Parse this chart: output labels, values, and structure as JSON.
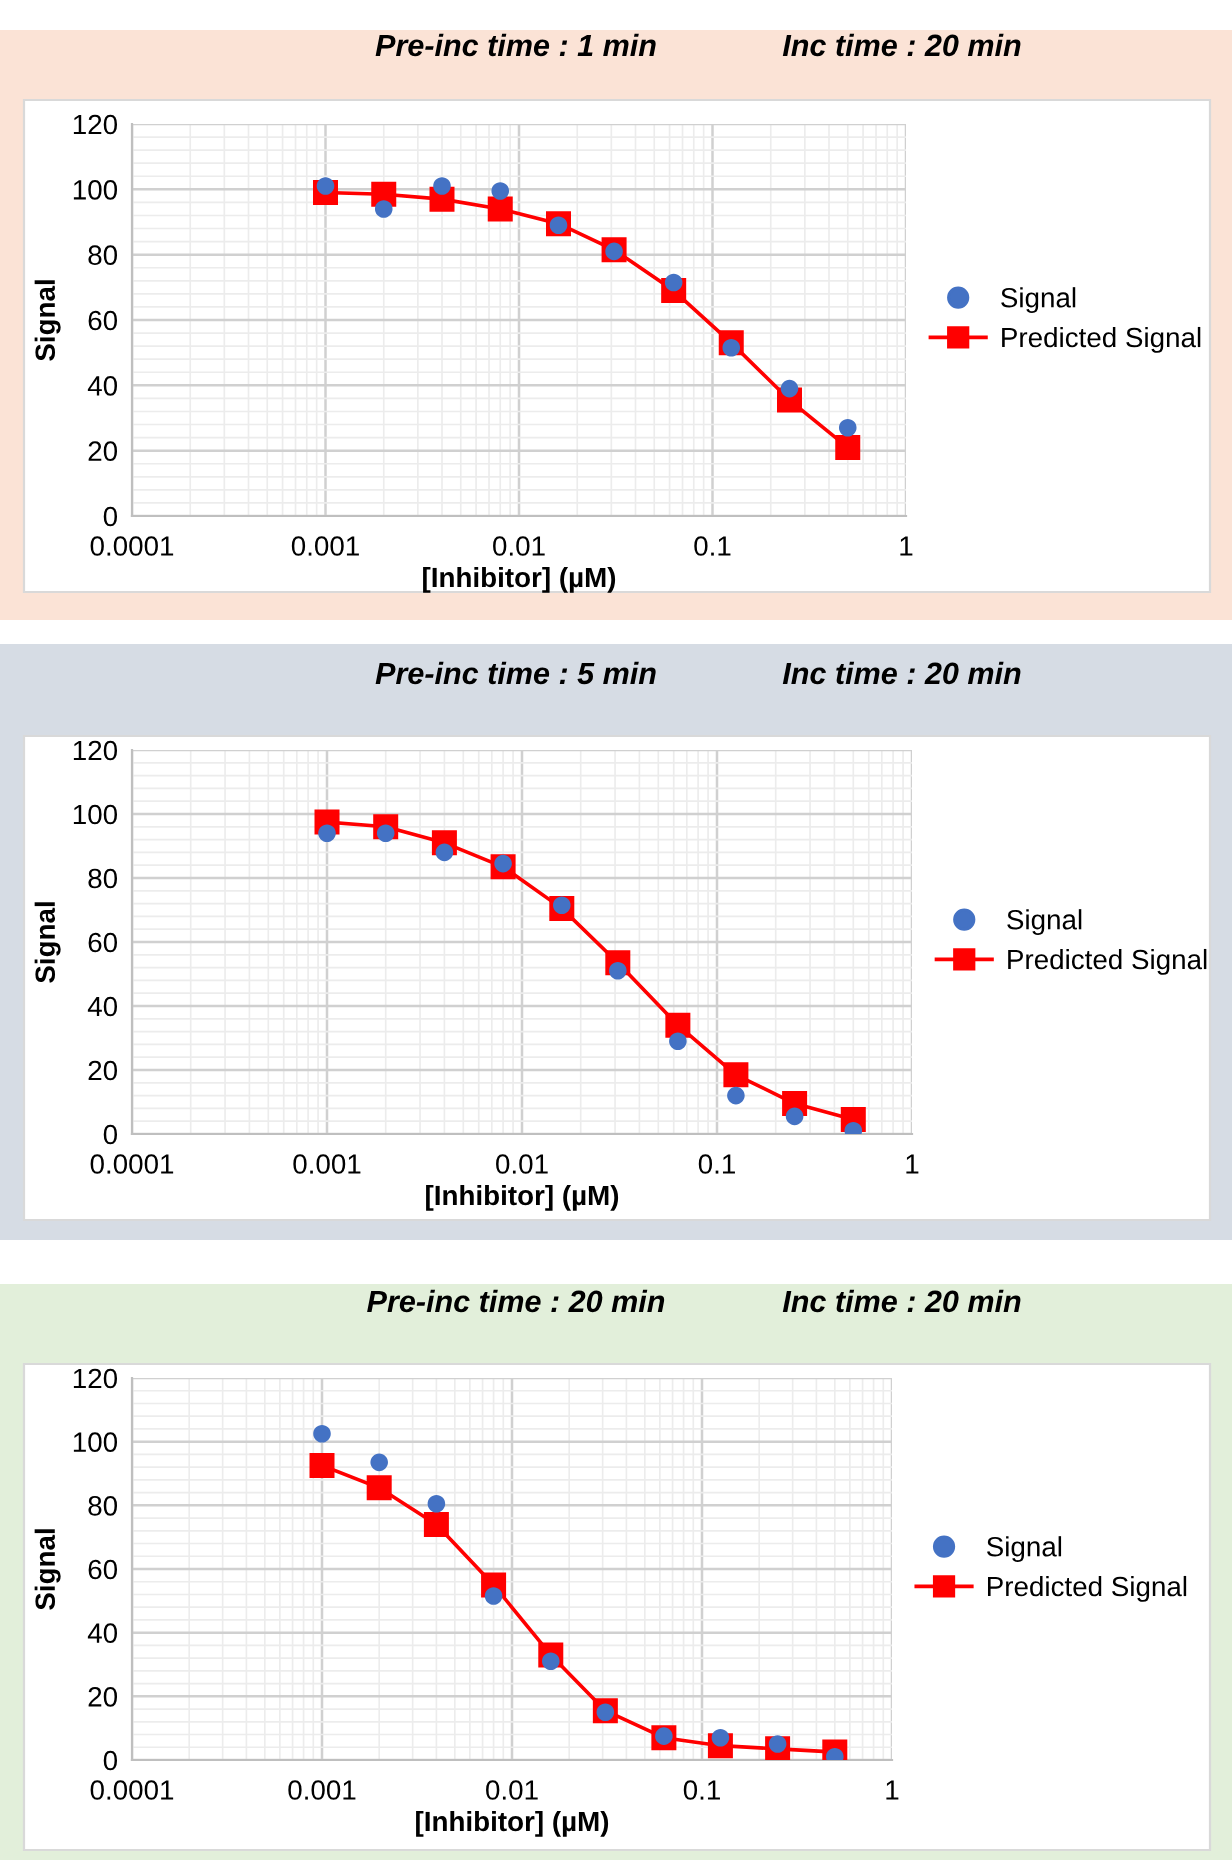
{
  "chart_data": [
    {
      "type": "scatter",
      "title": "Pre-inc time : 1 min",
      "subtitle": "Inc time : 20 min",
      "xlabel": "[Inhibitor] (µM)",
      "ylabel": "Signal",
      "log": "x",
      "xlim": [
        0.0001,
        1
      ],
      "xticks": [
        0.0001,
        0.001,
        0.01,
        0.1,
        1
      ],
      "ylim": [
        0,
        120
      ],
      "yticks": [
        0,
        20,
        40,
        60,
        80,
        100,
        120
      ],
      "grid": true,
      "legend": "right",
      "x": [
        0.001,
        0.002,
        0.004,
        0.008,
        0.016,
        0.031,
        0.063,
        0.125,
        0.25,
        0.5
      ],
      "series": [
        {
          "name": "Signal",
          "marker": "circle",
          "color": "#4472c4",
          "values": [
            101,
            94,
            101,
            99.5,
            89,
            81,
            71.5,
            51.5,
            39,
            27
          ]
        },
        {
          "name": "Predicted Signal",
          "type": "line",
          "marker": "square",
          "color": "#ff0000",
          "values": [
            99,
            98.5,
            97,
            94,
            89.5,
            81.5,
            69,
            53,
            35.5,
            21
          ]
        }
      ]
    },
    {
      "type": "scatter",
      "title": "Pre-inc time : 5 min",
      "subtitle": "Inc time : 20 min",
      "xlabel": "[Inhibitor] (µM)",
      "ylabel": "Signal",
      "log": "x",
      "xlim": [
        0.0001,
        1
      ],
      "xticks": [
        0.0001,
        0.001,
        0.01,
        0.1,
        1
      ],
      "ylim": [
        0,
        120
      ],
      "yticks": [
        0,
        20,
        40,
        60,
        80,
        100,
        120
      ],
      "grid": true,
      "legend": "right",
      "x": [
        0.001,
        0.002,
        0.004,
        0.008,
        0.016,
        0.031,
        0.063,
        0.125,
        0.25,
        0.5
      ],
      "series": [
        {
          "name": "Signal",
          "marker": "circle",
          "color": "#4472c4",
          "values": [
            94,
            94,
            88,
            84.5,
            71.5,
            51,
            29,
            12,
            5.5,
            1
          ]
        },
        {
          "name": "Predicted Signal",
          "type": "line",
          "marker": "square",
          "color": "#ff0000",
          "values": [
            97.5,
            96,
            91,
            83.5,
            70.5,
            53.5,
            34,
            18.5,
            9.5,
            4.5
          ]
        }
      ]
    },
    {
      "type": "scatter",
      "title": "Pre-inc time : 20 min",
      "subtitle": "Inc time : 20 min",
      "xlabel": "[Inhibitor] (µM)",
      "ylabel": "Signal",
      "log": "x",
      "xlim": [
        0.0001,
        1
      ],
      "xticks": [
        0.0001,
        0.001,
        0.01,
        0.1,
        1
      ],
      "ylim": [
        0,
        120
      ],
      "yticks": [
        0,
        20,
        40,
        60,
        80,
        100,
        120
      ],
      "grid": true,
      "legend": "right",
      "x": [
        0.001,
        0.002,
        0.004,
        0.008,
        0.016,
        0.031,
        0.063,
        0.125,
        0.25,
        0.5
      ],
      "series": [
        {
          "name": "Signal",
          "marker": "circle",
          "color": "#4472c4",
          "values": [
            102.5,
            93.5,
            80.5,
            51.5,
            31,
            15,
            7.5,
            7,
            5,
            1
          ]
        },
        {
          "name": "Predicted Signal",
          "type": "line",
          "marker": "square",
          "color": "#ff0000",
          "values": [
            92.5,
            85.5,
            74,
            55,
            33,
            15.5,
            7,
            4.5,
            3.5,
            2.5
          ]
        }
      ]
    }
  ]
}
